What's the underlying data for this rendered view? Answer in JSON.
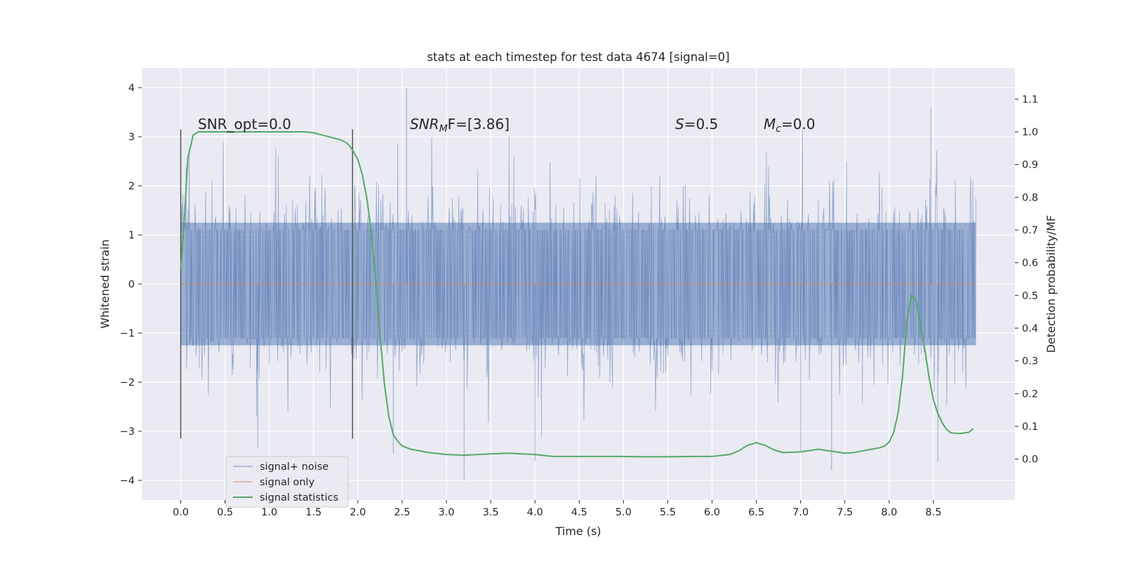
{
  "chart_data": {
    "type": "line",
    "title": "stats at each timestep for test data 4674 [signal=0]",
    "xlabel": "Time (s)",
    "ylabel": "Whitened strain",
    "ylabel_right": "Detection probability/MF",
    "xlim": [
      -0.44,
      9.42
    ],
    "ylim": [
      -4.4,
      4.4
    ],
    "ylim_right": [
      -0.125,
      1.195
    ],
    "x_ticks": [
      "0.0",
      "0.5",
      "1.0",
      "1.5",
      "2.0",
      "2.5",
      "3.0",
      "3.5",
      "4.0",
      "4.5",
      "5.0",
      "5.5",
      "6.0",
      "6.5",
      "7.0",
      "7.5",
      "8.0",
      "8.5"
    ],
    "x_tick_values": [
      0.0,
      0.5,
      1.0,
      1.5,
      2.0,
      2.5,
      3.0,
      3.5,
      4.0,
      4.5,
      5.0,
      5.5,
      6.0,
      6.5,
      7.0,
      7.5,
      8.0,
      8.5
    ],
    "y_ticks": [
      "4",
      "3",
      "2",
      "1",
      "0",
      "−1",
      "−2",
      "−3",
      "−4"
    ],
    "y_tick_values": [
      4,
      3,
      2,
      1,
      0,
      -1,
      -2,
      -3,
      -4
    ],
    "y2_ticks": [
      "1.1",
      "1.0",
      "0.9",
      "0.8",
      "0.7",
      "0.6",
      "0.5",
      "0.4",
      "0.3",
      "0.2",
      "0.1",
      "0.0"
    ],
    "y2_tick_values": [
      1.1,
      1.0,
      0.9,
      0.8,
      0.7,
      0.6,
      0.5,
      0.4,
      0.3,
      0.2,
      0.1,
      0.0
    ],
    "annotations": {
      "snr_opt": "SNR_opt=0.0",
      "snr_mf_pre": "SNR",
      "snr_mf_sub": "M",
      "snr_mf_post": "F=[3.86]",
      "s_var": "S",
      "s_val": "=0.5",
      "mc_var": "M",
      "mc_sub": "c",
      "mc_val": "=0.0"
    },
    "vertical_markers_x": [
      0.0,
      1.94
    ],
    "vertical_marker_yrange": [
      -3.15,
      3.15
    ],
    "legend": {
      "placement": "lower-left",
      "entries": [
        "signal+ noise",
        "signal only",
        "signal statistics"
      ]
    },
    "series": [
      {
        "name": "signal+ noise",
        "color": "#4c72b0",
        "x_range": [
          0.0,
          8.98
        ],
        "envelope_spread": 1.25,
        "outlier_extent": [
          -4.0,
          4.0
        ],
        "description_values": "dense whitened noise, mostly within ±2, peaks near 4.0 at 2.55 s and -4.0 at 3.2 s"
      },
      {
        "name": "signal only",
        "color": "#dd8452",
        "x": [
          0.0,
          8.98
        ],
        "y": [
          0.0,
          0.0
        ]
      },
      {
        "name": "signal statistics",
        "color": "#55a868",
        "axis": "right",
        "x": [
          0.0,
          0.04,
          0.08,
          0.14,
          0.2,
          0.3,
          0.5,
          0.8,
          1.0,
          1.2,
          1.4,
          1.5,
          1.6,
          1.7,
          1.8,
          1.85,
          1.9,
          1.95,
          2.0,
          2.05,
          2.1,
          2.15,
          2.2,
          2.25,
          2.3,
          2.35,
          2.4,
          2.45,
          2.5,
          2.6,
          2.8,
          3.0,
          3.2,
          3.5,
          3.7,
          4.0,
          4.2,
          4.5,
          5.0,
          5.2,
          5.5,
          5.8,
          6.0,
          6.2,
          6.3,
          6.4,
          6.5,
          6.6,
          6.7,
          6.8,
          7.0,
          7.2,
          7.4,
          7.5,
          7.6,
          7.8,
          7.9,
          7.95,
          8.0,
          8.05,
          8.1,
          8.15,
          8.2,
          8.25,
          8.3,
          8.35,
          8.4,
          8.45,
          8.5,
          8.55,
          8.6,
          8.65,
          8.7,
          8.8,
          8.9,
          8.95
        ],
        "y": [
          0.58,
          0.73,
          0.92,
          0.99,
          1.0,
          1.0,
          1.0,
          1.0,
          1.0,
          1.0,
          1.0,
          0.997,
          0.99,
          0.983,
          0.976,
          0.97,
          0.96,
          0.94,
          0.915,
          0.87,
          0.8,
          0.7,
          0.55,
          0.38,
          0.23,
          0.13,
          0.075,
          0.055,
          0.04,
          0.03,
          0.02,
          0.014,
          0.012,
          0.016,
          0.018,
          0.014,
          0.008,
          0.008,
          0.008,
          0.007,
          0.007,
          0.008,
          0.008,
          0.014,
          0.025,
          0.042,
          0.05,
          0.042,
          0.028,
          0.02,
          0.022,
          0.03,
          0.022,
          0.018,
          0.02,
          0.03,
          0.035,
          0.04,
          0.052,
          0.08,
          0.14,
          0.25,
          0.42,
          0.5,
          0.49,
          0.42,
          0.34,
          0.25,
          0.18,
          0.14,
          0.11,
          0.09,
          0.08,
          0.078,
          0.082,
          0.093
        ]
      }
    ]
  }
}
